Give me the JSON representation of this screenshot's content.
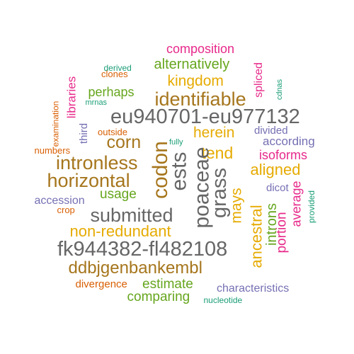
{
  "palette": {
    "teal": "#1b9e77",
    "orange": "#d95f02",
    "purple": "#7570b3",
    "magenta": "#e7298a",
    "green": "#66a61e",
    "gold": "#e6ab02",
    "brown": "#a6761d",
    "gray": "#666666"
  },
  "words": [
    {
      "text": "composition",
      "color": "magenta"
    },
    {
      "text": "alternatively",
      "color": "green"
    },
    {
      "text": "derived",
      "color": "teal"
    },
    {
      "text": "clones",
      "color": "orange"
    },
    {
      "text": "kingdom",
      "color": "gold"
    },
    {
      "text": "spliced",
      "color": "magenta"
    },
    {
      "text": "cdnas",
      "color": "teal"
    },
    {
      "text": "libraries",
      "color": "magenta"
    },
    {
      "text": "perhaps",
      "color": "green"
    },
    {
      "text": "mrnas",
      "color": "teal"
    },
    {
      "text": "identifiable",
      "color": "brown"
    },
    {
      "text": "examination",
      "color": "orange"
    },
    {
      "text": "eu940701-eu977132",
      "color": "gray"
    },
    {
      "text": "third",
      "color": "purple"
    },
    {
      "text": "outside",
      "color": "orange"
    },
    {
      "text": "herein",
      "color": "gold"
    },
    {
      "text": "divided",
      "color": "purple"
    },
    {
      "text": "corn",
      "color": "brown"
    },
    {
      "text": "fully",
      "color": "teal"
    },
    {
      "text": "according",
      "color": "purple"
    },
    {
      "text": "numbers",
      "color": "orange"
    },
    {
      "text": "tend",
      "color": "gold"
    },
    {
      "text": "isoforms",
      "color": "magenta"
    },
    {
      "text": "intronless",
      "color": "brown"
    },
    {
      "text": "codon",
      "color": "brown"
    },
    {
      "text": "ests",
      "color": "gray"
    },
    {
      "text": "poaceae",
      "color": "gray"
    },
    {
      "text": "grass",
      "color": "gray"
    },
    {
      "text": "aligned",
      "color": "gold"
    },
    {
      "text": "horizontal",
      "color": "brown"
    },
    {
      "text": "dicot",
      "color": "purple"
    },
    {
      "text": "usage",
      "color": "green"
    },
    {
      "text": "average",
      "color": "magenta"
    },
    {
      "text": "provided",
      "color": "teal"
    },
    {
      "text": "accession",
      "color": "purple"
    },
    {
      "text": "crop",
      "color": "orange"
    },
    {
      "text": "submitted",
      "color": "gray"
    },
    {
      "text": "mays",
      "color": "gold"
    },
    {
      "text": "ancestral",
      "color": "gold"
    },
    {
      "text": "introns",
      "color": "green"
    },
    {
      "text": "portion",
      "color": "magenta"
    },
    {
      "text": "non-redundant",
      "color": "gold"
    },
    {
      "text": "fk944382-fl482108",
      "color": "gray"
    },
    {
      "text": "ddbjgenbankembl",
      "color": "brown"
    },
    {
      "text": "divergence",
      "color": "orange"
    },
    {
      "text": "estimate",
      "color": "green"
    },
    {
      "text": "characteristics",
      "color": "purple"
    },
    {
      "text": "comparing",
      "color": "green"
    },
    {
      "text": "nucleotide",
      "color": "teal"
    }
  ]
}
